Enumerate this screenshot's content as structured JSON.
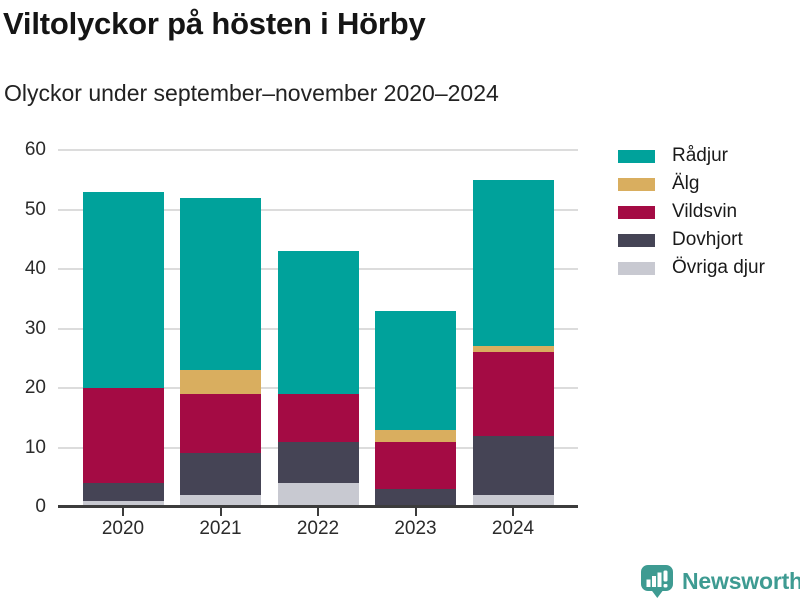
{
  "chart": {
    "title": "Viltolyckor på hösten i Hörby",
    "subtitle": "Olyckor under september–november 2020–2024"
  },
  "chart_data": {
    "type": "bar",
    "stacked": true,
    "title": "Viltolyckor på hösten i Hörby",
    "subtitle": "Olyckor under september–november 2020–2024",
    "categories": [
      "2020",
      "2021",
      "2022",
      "2023",
      "2024"
    ],
    "series": [
      {
        "name": "Övriga djur",
        "color": "#c8c9d1",
        "values": [
          1,
          2,
          4,
          0,
          2
        ]
      },
      {
        "name": "Dovhjort",
        "color": "#454455",
        "values": [
          3,
          7,
          7,
          3,
          10
        ]
      },
      {
        "name": "Vildsvin",
        "color": "#a40b44",
        "values": [
          16,
          10,
          8,
          8,
          14
        ]
      },
      {
        "name": "Älg",
        "color": "#d9ae5f",
        "values": [
          0,
          4,
          0,
          2,
          1
        ]
      },
      {
        "name": "Rådjur",
        "color": "#00a29b",
        "values": [
          33,
          29,
          24,
          20,
          28
        ]
      }
    ],
    "totals": [
      53,
      52,
      43,
      33,
      55
    ],
    "ylim": [
      0,
      60
    ],
    "yticks": [
      0,
      10,
      20,
      30,
      40,
      50,
      60
    ],
    "xlabel": "",
    "ylabel": "",
    "grid": "horizontal",
    "legend_position": "right",
    "legend_order": [
      "Rådjur",
      "Älg",
      "Vildsvin",
      "Dovhjort",
      "Övriga djur"
    ]
  },
  "branding": {
    "logo_text": "Newsworthy",
    "logo_color": "#3e9b92"
  }
}
